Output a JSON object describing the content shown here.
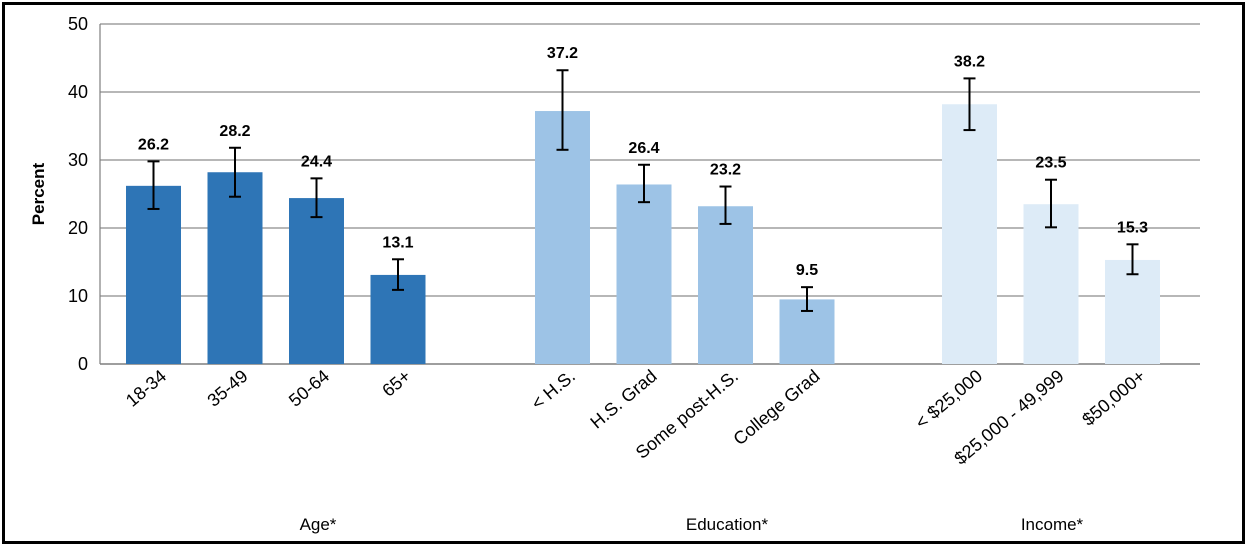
{
  "chart_data": {
    "type": "bar",
    "ylabel": "Percent",
    "ylim": [
      0,
      50
    ],
    "yticks": [
      0,
      10,
      20,
      30,
      40,
      50
    ],
    "grid": true,
    "error_bars": true,
    "groups": [
      {
        "name": "Age*",
        "color": "#2e75b6",
        "categories": [
          "18-34",
          "35-49",
          "50-64",
          "65+"
        ],
        "values": [
          26.2,
          28.2,
          24.4,
          13.1
        ],
        "ci_low": [
          22.8,
          24.6,
          21.6,
          10.9
        ],
        "ci_high": [
          29.8,
          31.8,
          27.3,
          15.4
        ]
      },
      {
        "name": "Education*",
        "color": "#9dc3e6",
        "categories": [
          "< H.S.",
          "H.S. Grad",
          "Some post-H.S.",
          "College Grad"
        ],
        "values": [
          37.2,
          26.4,
          23.2,
          9.5
        ],
        "ci_low": [
          31.5,
          23.8,
          20.6,
          7.8
        ],
        "ci_high": [
          43.2,
          29.3,
          26.1,
          11.3
        ]
      },
      {
        "name": "Income*",
        "color": "#ddebf7",
        "categories": [
          "< $25,000",
          "$25,000 - 49,999",
          "$50,000+"
        ],
        "values": [
          38.2,
          23.5,
          15.3
        ],
        "ci_low": [
          34.4,
          20.1,
          13.2
        ],
        "ci_high": [
          42.0,
          27.1,
          17.6
        ]
      }
    ]
  }
}
